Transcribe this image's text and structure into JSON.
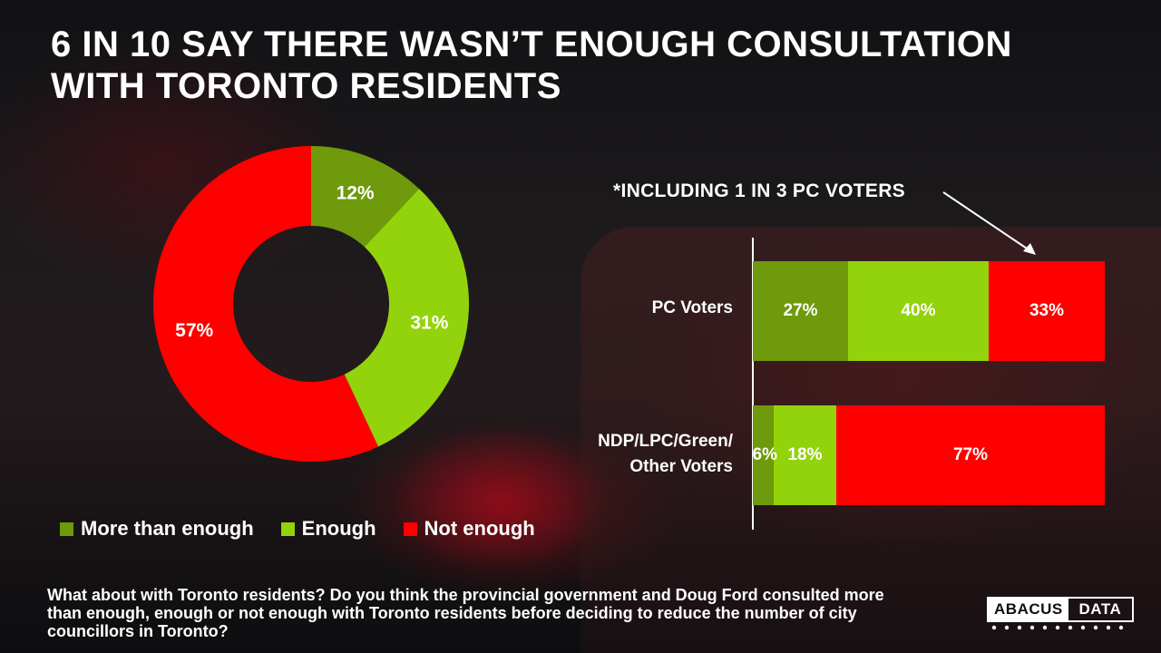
{
  "title": {
    "line1": "6 IN 10 SAY THERE WASN’T ENOUGH CONSULTATION",
    "line2": "WITH TORONTO RESIDENTS"
  },
  "colors": {
    "more_than_enough": "#6e9a0c",
    "enough": "#93d30b",
    "not_enough": "#ff0000"
  },
  "chart_data": [
    {
      "type": "pie",
      "variant": "donut",
      "title": "",
      "categories": [
        "More than enough",
        "Enough",
        "Not enough"
      ],
      "values": [
        12,
        31,
        57
      ],
      "labels": [
        "12%",
        "31%",
        "57%"
      ],
      "unit": "%"
    },
    {
      "type": "bar",
      "orientation": "horizontal",
      "stacked": true,
      "categories": [
        "PC Voters",
        "NDP/LPC/Green/ Other Voters"
      ],
      "series": [
        {
          "name": "More than enough",
          "values": [
            27,
            6
          ],
          "labels": [
            "27%",
            "6%"
          ]
        },
        {
          "name": "Enough",
          "values": [
            40,
            18
          ],
          "labels": [
            "40%",
            "18%"
          ]
        },
        {
          "name": "Not enough",
          "values": [
            33,
            77
          ],
          "labels": [
            "33%",
            "77%"
          ]
        }
      ],
      "annotation": "*INCLUDING 1 IN 3 PC VOTERS",
      "xlim": [
        0,
        100
      ]
    }
  ],
  "legend": {
    "more_than_enough": "More than enough",
    "enough": "Enough",
    "not_enough": "Not enough"
  },
  "bars": {
    "note": "*INCLUDING 1 IN 3 PC VOTERS",
    "row1_label": "PC Voters",
    "row2_label_line1": "NDP/LPC/Green/",
    "row2_label_line2": "Other Voters"
  },
  "question": "What about with Toronto residents? Do you think the provincial government and Doug Ford consulted more than enough, enough or not enough with Toronto residents before deciding to reduce the number of city councillors in Toronto?",
  "logo": {
    "left": "ABACUS",
    "right": "DATA"
  }
}
